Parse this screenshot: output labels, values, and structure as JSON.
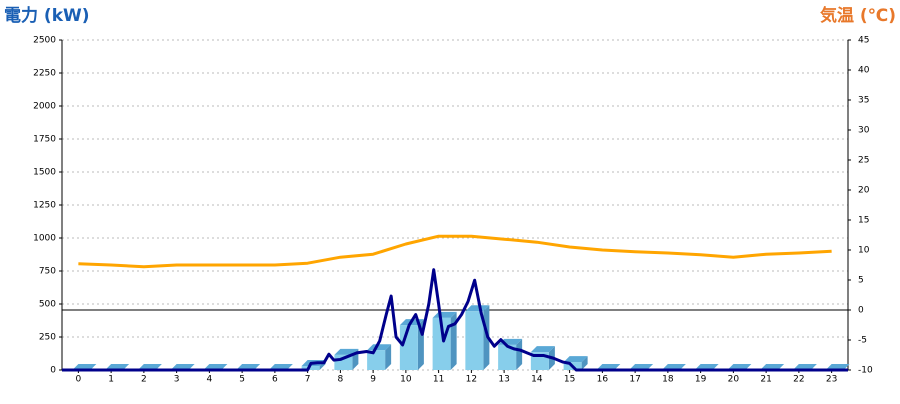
{
  "chart_data": {
    "type": "bar_line_dual",
    "y_title": "電力 (kW)",
    "y2_title": "気温 (℃)",
    "categories": [
      "0",
      "1",
      "2",
      "3",
      "4",
      "5",
      "6",
      "7",
      "8",
      "9",
      "10",
      "11",
      "12",
      "13",
      "14",
      "15",
      "16",
      "17",
      "18",
      "19",
      "20",
      "21",
      "22",
      "23"
    ],
    "xlim": [
      -0.5,
      23.5
    ],
    "ylim": [
      0,
      2500
    ],
    "yticks": [
      0,
      250,
      500,
      750,
      1000,
      1250,
      1500,
      1750,
      2000,
      2250,
      2500
    ],
    "y2lim": [
      -10,
      45
    ],
    "y2ticks": [
      -10,
      -5,
      0,
      5,
      10,
      15,
      20,
      25,
      30,
      35,
      40,
      45
    ],
    "grid": true,
    "y2_zero_line": true,
    "bars": {
      "color": "#87ceeb",
      "values": [
        0,
        0,
        0,
        0,
        0,
        0,
        0,
        30,
        115,
        150,
        340,
        395,
        445,
        190,
        135,
        60,
        0,
        0,
        0,
        0,
        0,
        0,
        0,
        0
      ]
    },
    "power_line": {
      "color": "#00008b",
      "x": [
        -0.5,
        7.0,
        7.1,
        7.3,
        7.5,
        7.65,
        7.8,
        8.0,
        8.2,
        8.5,
        8.8,
        9.0,
        9.2,
        9.4,
        9.55,
        9.7,
        9.9,
        10.1,
        10.3,
        10.5,
        10.7,
        10.85,
        11.0,
        11.15,
        11.3,
        11.5,
        11.7,
        11.9,
        12.1,
        12.3,
        12.5,
        12.7,
        12.9,
        13.1,
        13.3,
        13.5,
        13.7,
        13.9,
        14.2,
        14.5,
        14.8,
        15.0,
        15.2,
        23.5
      ],
      "values": [
        0,
        0,
        50,
        55,
        55,
        120,
        75,
        80,
        100,
        130,
        140,
        130,
        220,
        420,
        560,
        250,
        190,
        340,
        420,
        270,
        500,
        760,
        500,
        220,
        330,
        350,
        420,
        520,
        680,
        430,
        250,
        180,
        230,
        180,
        160,
        150,
        130,
        110,
        110,
        90,
        60,
        50,
        0,
        0
      ]
    },
    "temperature": {
      "color": "#ffa500",
      "axis": "y2",
      "x": [
        0,
        1,
        2,
        3,
        4,
        5,
        6,
        7,
        8,
        9,
        10,
        11,
        12,
        13,
        14,
        15,
        16,
        17,
        18,
        19,
        20,
        21,
        22,
        23
      ],
      "values": [
        7.7,
        7.5,
        7.2,
        7.5,
        7.5,
        7.5,
        7.5,
        7.8,
        8.8,
        9.3,
        11,
        12.3,
        12.3,
        11.8,
        11.3,
        10.5,
        10,
        9.7,
        9.5,
        9.2,
        8.8,
        9.3,
        9.5,
        9.8
      ]
    }
  }
}
